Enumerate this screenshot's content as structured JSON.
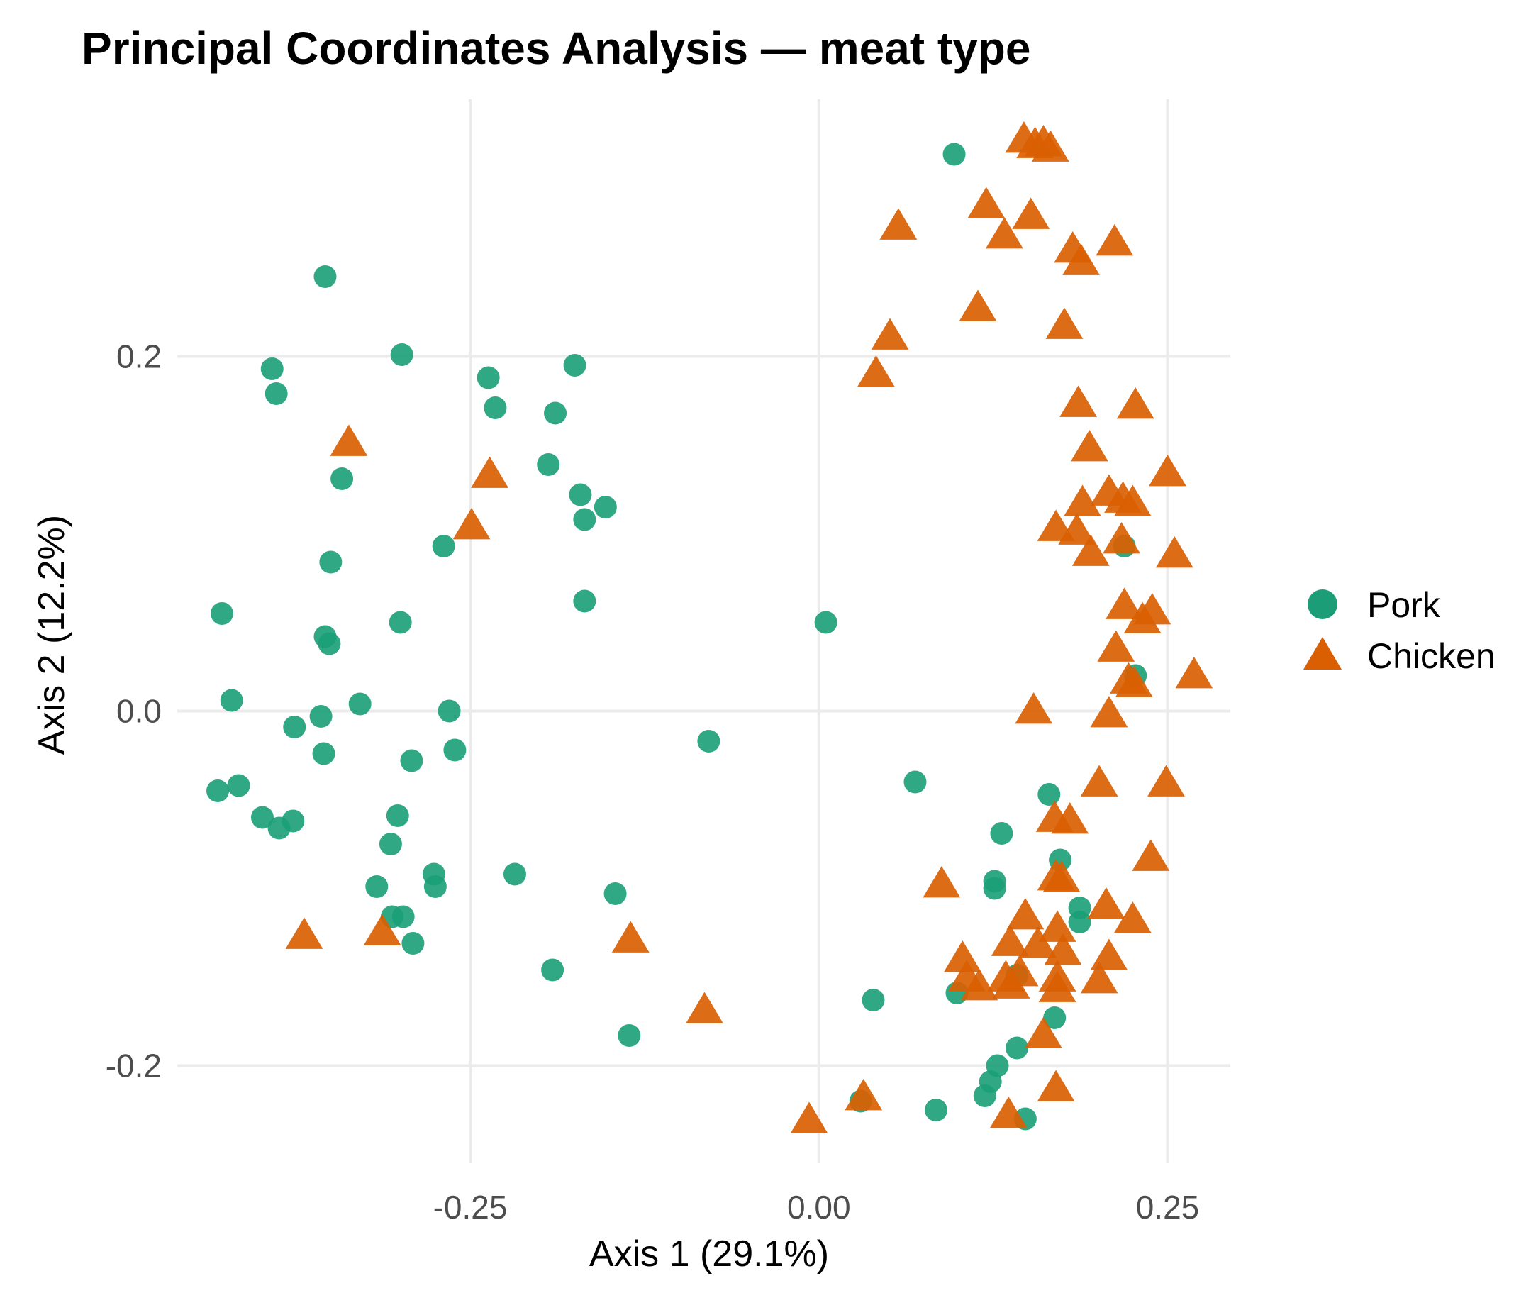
{
  "chart_data": {
    "type": "scatter",
    "title": "Principal Coordinates Analysis — meat type",
    "xlabel": "Axis 1 (29.1%)",
    "ylabel": "Axis 2 (12.2%)",
    "xlim": [
      -0.46,
      0.295
    ],
    "ylim": [
      -0.255,
      0.345
    ],
    "xticks": [
      -0.25,
      0.0,
      0.25
    ],
    "xtick_labels": [
      "-0.25",
      "0.00",
      "0.25"
    ],
    "yticks": [
      -0.2,
      0.0,
      0.2
    ],
    "ytick_labels": [
      "-0.2",
      "0.0",
      "0.2"
    ],
    "grid": true,
    "legend_position": "right",
    "series": [
      {
        "name": "Pork",
        "color": "#1b9e77",
        "marker": "circle",
        "points": [
          [
            0.097,
            0.314
          ],
          [
            -0.354,
            0.245
          ],
          [
            -0.299,
            0.201
          ],
          [
            -0.392,
            0.193
          ],
          [
            -0.389,
            0.179
          ],
          [
            -0.237,
            0.188
          ],
          [
            -0.175,
            0.195
          ],
          [
            -0.232,
            0.171
          ],
          [
            -0.189,
            0.168
          ],
          [
            -0.194,
            0.139
          ],
          [
            -0.342,
            0.131
          ],
          [
            -0.171,
            0.122
          ],
          [
            -0.153,
            0.115
          ],
          [
            -0.168,
            0.108
          ],
          [
            -0.269,
            0.093
          ],
          [
            -0.35,
            0.084
          ],
          [
            -0.168,
            0.062
          ],
          [
            -0.428,
            0.055
          ],
          [
            0.005,
            0.05
          ],
          [
            -0.3,
            0.05
          ],
          [
            -0.354,
            0.042
          ],
          [
            -0.351,
            0.038
          ],
          [
            0.219,
            0.093
          ],
          [
            -0.421,
            0.006
          ],
          [
            -0.329,
            0.004
          ],
          [
            -0.265,
            0.0
          ],
          [
            -0.376,
            -0.009
          ],
          [
            -0.357,
            -0.003
          ],
          [
            0.227,
            0.02
          ],
          [
            -0.355,
            -0.024
          ],
          [
            -0.261,
            -0.022
          ],
          [
            -0.292,
            -0.028
          ],
          [
            -0.079,
            -0.017
          ],
          [
            0.069,
            -0.04
          ],
          [
            -0.431,
            -0.045
          ],
          [
            -0.416,
            -0.042
          ],
          [
            -0.399,
            -0.06
          ],
          [
            -0.377,
            -0.062
          ],
          [
            -0.387,
            -0.066
          ],
          [
            -0.302,
            -0.059
          ],
          [
            -0.307,
            -0.075
          ],
          [
            0.165,
            -0.047
          ],
          [
            0.131,
            -0.069
          ],
          [
            0.173,
            -0.084
          ],
          [
            -0.276,
            -0.092
          ],
          [
            -0.218,
            -0.092
          ],
          [
            -0.317,
            -0.099
          ],
          [
            -0.275,
            -0.099
          ],
          [
            0.126,
            -0.096
          ],
          [
            0.126,
            -0.1
          ],
          [
            -0.146,
            -0.103
          ],
          [
            0.187,
            -0.111
          ],
          [
            0.187,
            -0.119
          ],
          [
            -0.306,
            -0.116
          ],
          [
            -0.298,
            -0.116
          ],
          [
            -0.291,
            -0.131
          ],
          [
            -0.191,
            -0.146
          ],
          [
            0.142,
            -0.149
          ],
          [
            0.099,
            -0.159
          ],
          [
            0.039,
            -0.163
          ],
          [
            0.169,
            -0.173
          ],
          [
            -0.136,
            -0.183
          ],
          [
            0.142,
            -0.19
          ],
          [
            0.128,
            -0.2
          ],
          [
            0.123,
            -0.209
          ],
          [
            0.119,
            -0.217
          ],
          [
            0.03,
            -0.22
          ],
          [
            0.084,
            -0.225
          ],
          [
            0.148,
            -0.23
          ]
        ]
      },
      {
        "name": "Chicken",
        "color": "#d95f02",
        "marker": "triangle",
        "points": [
          [
            0.147,
            0.323
          ],
          [
            0.155,
            0.32
          ],
          [
            0.161,
            0.321
          ],
          [
            0.166,
            0.318
          ],
          [
            0.12,
            0.286
          ],
          [
            0.152,
            0.28
          ],
          [
            0.057,
            0.274
          ],
          [
            0.133,
            0.269
          ],
          [
            0.182,
            0.261
          ],
          [
            0.212,
            0.265
          ],
          [
            0.188,
            0.254
          ],
          [
            0.114,
            0.228
          ],
          [
            0.176,
            0.218
          ],
          [
            0.051,
            0.212
          ],
          [
            0.041,
            0.191
          ],
          [
            0.186,
            0.174
          ],
          [
            0.227,
            0.173
          ],
          [
            0.194,
            0.149
          ],
          [
            -0.337,
            0.152
          ],
          [
            -0.236,
            0.134
          ],
          [
            0.25,
            0.135
          ],
          [
            0.208,
            0.124
          ],
          [
            0.189,
            0.118
          ],
          [
            0.218,
            0.12
          ],
          [
            0.225,
            0.118
          ],
          [
            -0.249,
            0.105
          ],
          [
            0.17,
            0.104
          ],
          [
            0.185,
            0.102
          ],
          [
            0.217,
            0.097
          ],
          [
            0.195,
            0.09
          ],
          [
            0.255,
            0.089
          ],
          [
            0.219,
            0.06
          ],
          [
            0.239,
            0.057
          ],
          [
            0.232,
            0.052
          ],
          [
            0.213,
            0.036
          ],
          [
            0.269,
            0.021
          ],
          [
            0.222,
            0.018
          ],
          [
            0.226,
            0.016
          ],
          [
            0.154,
            0.001
          ],
          [
            0.208,
            -0.001
          ],
          [
            0.201,
            -0.04
          ],
          [
            0.249,
            -0.04
          ],
          [
            0.169,
            -0.06
          ],
          [
            0.18,
            -0.061
          ],
          [
            0.238,
            -0.082
          ],
          [
            0.088,
            -0.097
          ],
          [
            0.17,
            -0.093
          ],
          [
            0.174,
            -0.094
          ],
          [
            -0.369,
            -0.126
          ],
          [
            -0.313,
            -0.124
          ],
          [
            -0.135,
            -0.128
          ],
          [
            0.148,
            -0.115
          ],
          [
            0.206,
            -0.109
          ],
          [
            0.225,
            -0.117
          ],
          [
            0.171,
            -0.122
          ],
          [
            0.137,
            -0.13
          ],
          [
            0.157,
            -0.131
          ],
          [
            0.175,
            -0.135
          ],
          [
            0.103,
            -0.139
          ],
          [
            0.208,
            -0.138
          ],
          [
            0.106,
            -0.15
          ],
          [
            0.134,
            -0.15
          ],
          [
            0.144,
            -0.147
          ],
          [
            0.171,
            -0.15
          ],
          [
            0.115,
            -0.155
          ],
          [
            0.138,
            -0.154
          ],
          [
            0.171,
            -0.156
          ],
          [
            0.201,
            -0.151
          ],
          [
            -0.082,
            -0.168
          ],
          [
            0.161,
            -0.182
          ],
          [
            0.17,
            -0.212
          ],
          [
            0.032,
            -0.217
          ],
          [
            0.136,
            -0.227
          ],
          [
            -0.007,
            -0.23
          ]
        ]
      }
    ]
  }
}
